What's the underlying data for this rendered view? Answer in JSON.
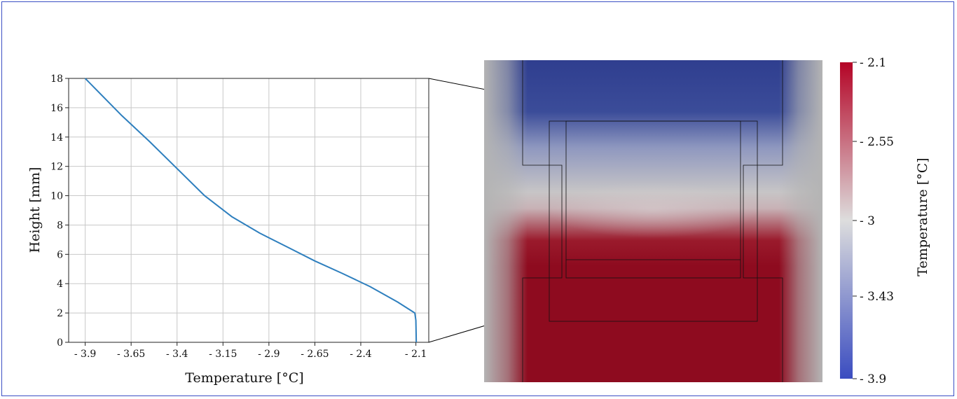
{
  "chart_data": [
    {
      "type": "line",
      "xlabel": "Temperature [°C]",
      "ylabel": "Height [mm]",
      "xlim": [
        -3.99,
        -2.03
      ],
      "ylim": [
        0,
        18
      ],
      "x_ticks": [
        -3.9,
        -3.65,
        -3.4,
        -3.15,
        -2.9,
        -2.65,
        -2.4,
        -2.1
      ],
      "x_tick_labels": [
        "- 3.9",
        "- 3.65",
        "- 3.4",
        "- 3.15",
        "- 2.9",
        "- 2.65",
        "- 2.4",
        "- 2.1"
      ],
      "y_ticks": [
        0,
        2,
        4,
        6,
        8,
        10,
        12,
        14,
        16,
        18
      ],
      "y_tick_labels": [
        "0",
        "2",
        "4",
        "6",
        "8",
        "10",
        "12",
        "14",
        "16",
        "18"
      ],
      "grid": true,
      "series": [
        {
          "color": "#2e7fbe",
          "x": [
            -2.098,
            -2.1,
            -2.106,
            -2.2,
            -2.35,
            -2.5,
            -2.65,
            -2.8,
            -2.95,
            -3.1,
            -3.25,
            -3.4,
            -3.55,
            -3.7,
            -3.9
          ],
          "y": [
            0,
            1.5,
            2.0,
            2.75,
            3.8,
            4.7,
            5.55,
            6.5,
            7.45,
            8.55,
            10.0,
            11.85,
            13.7,
            15.45,
            18.0
          ]
        }
      ]
    },
    {
      "type": "heatmap",
      "colorbar_label": "Temperature [°C]",
      "colorbar_range": [
        -3.9,
        -2.1
      ],
      "colorbar_ticks": [
        -2.1,
        -2.55,
        -3,
        -3.43,
        -3.9
      ],
      "colorbar_tick_labels": [
        "- 2.1",
        "- 2.55",
        "- 3",
        "- 3.43",
        "- 3.9"
      ],
      "colormap": [
        "#3a4cc0",
        "#dddddd",
        "#b40426"
      ],
      "color_cold": "#2f3e8f",
      "color_warm": "#8e0b1f",
      "color_ambient": "#b2b2b2"
    }
  ]
}
